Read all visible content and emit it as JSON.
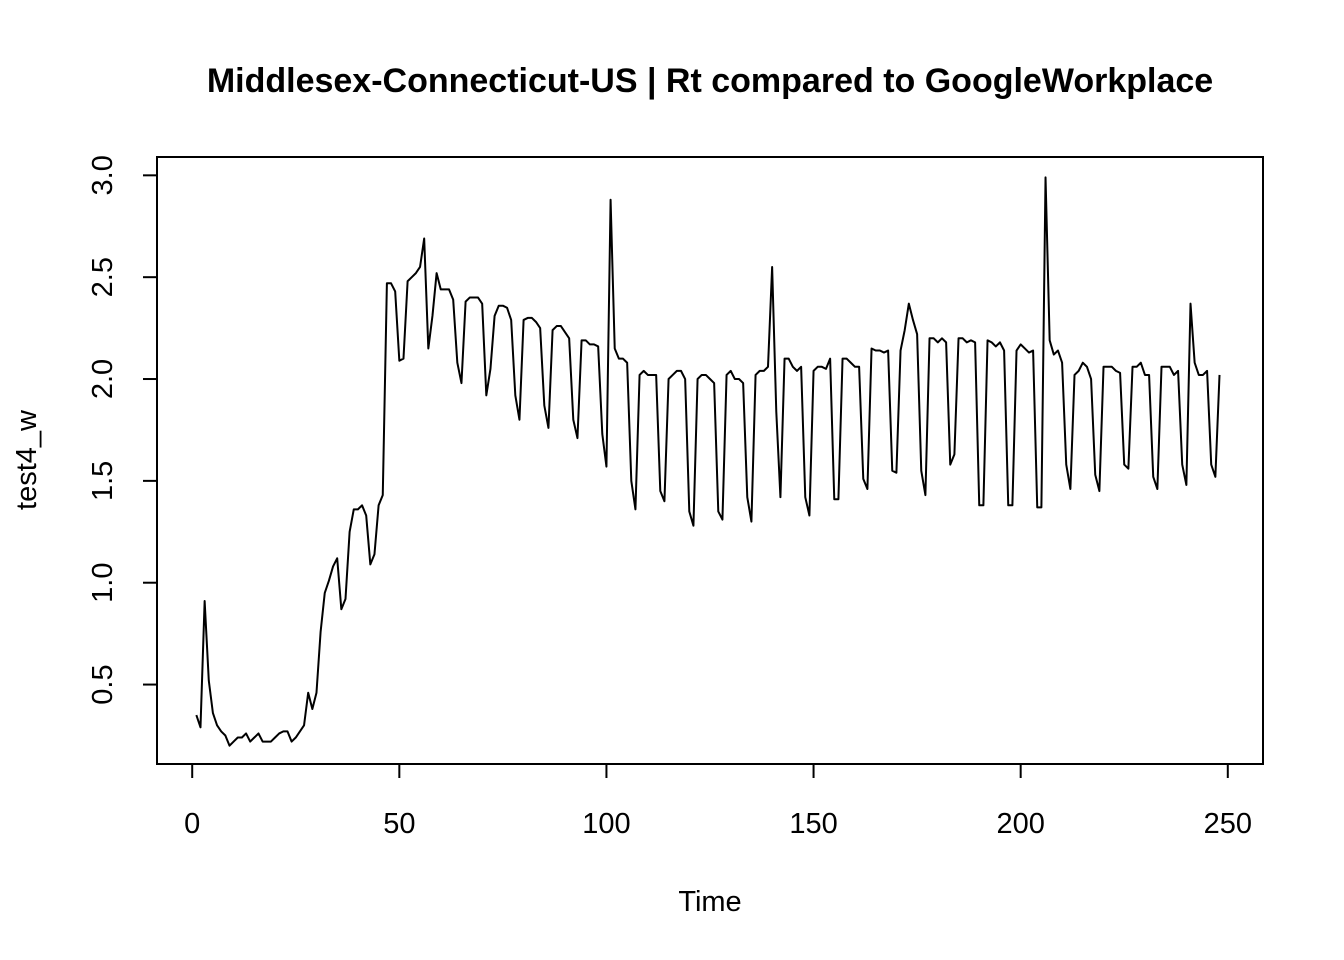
{
  "chart_data": {
    "type": "line",
    "title": "Middlesex-Connecticut-US | Rt compared to GoogleWorkplace",
    "xlabel": "Time",
    "ylabel": "test4_w",
    "xlim": [
      -8.5,
      258.5
    ],
    "ylim": [
      0.11,
      3.09
    ],
    "x_ticks": [
      0,
      50,
      100,
      150,
      200,
      250
    ],
    "y_ticks": [
      0.5,
      1.0,
      1.5,
      2.0,
      2.5,
      3.0
    ],
    "x_tick_labels": [
      "0",
      "50",
      "100",
      "150",
      "200",
      "250"
    ],
    "y_tick_labels": [
      "0.5",
      "1.0",
      "1.5",
      "2.0",
      "2.5",
      "3.0"
    ],
    "grid": false,
    "line_color": "#000000",
    "series": [
      {
        "x_start": 1,
        "x_step": 1,
        "values": [
          0.35,
          0.29,
          0.91,
          0.52,
          0.36,
          0.3,
          0.27,
          0.25,
          0.2,
          0.22,
          0.24,
          0.24,
          0.26,
          0.22,
          0.24,
          0.26,
          0.22,
          0.22,
          0.22,
          0.24,
          0.26,
          0.27,
          0.27,
          0.22,
          0.24,
          0.27,
          0.3,
          0.46,
          0.38,
          0.46,
          0.76,
          0.95,
          1.01,
          1.08,
          1.12,
          0.87,
          0.92,
          1.25,
          1.36,
          1.36,
          1.38,
          1.33,
          1.09,
          1.14,
          1.38,
          1.43,
          2.47,
          2.47,
          2.43,
          2.09,
          2.1,
          2.48,
          2.5,
          2.52,
          2.55,
          2.69,
          2.15,
          2.31,
          2.52,
          2.44,
          2.44,
          2.44,
          2.39,
          2.08,
          1.98,
          2.38,
          2.4,
          2.4,
          2.4,
          2.37,
          1.92,
          2.05,
          2.31,
          2.36,
          2.36,
          2.35,
          2.29,
          1.92,
          1.8,
          2.29,
          2.3,
          2.3,
          2.28,
          2.25,
          1.87,
          1.76,
          2.24,
          2.26,
          2.26,
          2.23,
          2.2,
          1.8,
          1.71,
          2.19,
          2.19,
          2.17,
          2.17,
          2.16,
          1.73,
          1.57,
          2.88,
          2.15,
          2.1,
          2.1,
          2.08,
          1.5,
          1.36,
          2.02,
          2.04,
          2.02,
          2.02,
          2.02,
          1.45,
          1.4,
          2.0,
          2.02,
          2.04,
          2.04,
          2.0,
          1.35,
          1.28,
          2.0,
          2.02,
          2.02,
          2.0,
          1.98,
          1.35,
          1.31,
          2.02,
          2.04,
          2.0,
          2.0,
          1.98,
          1.42,
          1.3,
          2.02,
          2.04,
          2.04,
          2.06,
          2.55,
          1.84,
          1.42,
          2.1,
          2.1,
          2.06,
          2.04,
          2.06,
          1.42,
          1.33,
          2.04,
          2.06,
          2.06,
          2.05,
          2.1,
          1.41,
          1.41,
          2.1,
          2.1,
          2.08,
          2.06,
          2.06,
          1.51,
          1.46,
          2.15,
          2.14,
          2.14,
          2.13,
          2.14,
          1.55,
          1.54,
          2.14,
          2.24,
          2.37,
          2.29,
          2.22,
          1.55,
          1.43,
          2.2,
          2.2,
          2.18,
          2.2,
          2.18,
          1.58,
          1.63,
          2.2,
          2.2,
          2.18,
          2.19,
          2.18,
          1.38,
          1.38,
          2.19,
          2.18,
          2.16,
          2.18,
          2.14,
          1.38,
          1.38,
          2.14,
          2.17,
          2.15,
          2.13,
          2.14,
          1.37,
          1.37,
          2.99,
          2.19,
          2.12,
          2.14,
          2.08,
          1.58,
          1.46,
          2.02,
          2.04,
          2.08,
          2.06,
          2.0,
          1.53,
          1.45,
          2.06,
          2.06,
          2.06,
          2.04,
          2.03,
          1.58,
          1.56,
          2.06,
          2.06,
          2.08,
          2.02,
          2.02,
          1.52,
          1.46,
          2.06,
          2.06,
          2.06,
          2.02,
          2.04,
          1.58,
          1.48,
          2.37,
          2.08,
          2.02,
          2.02,
          2.04,
          1.58,
          1.52,
          2.02
        ]
      }
    ]
  }
}
